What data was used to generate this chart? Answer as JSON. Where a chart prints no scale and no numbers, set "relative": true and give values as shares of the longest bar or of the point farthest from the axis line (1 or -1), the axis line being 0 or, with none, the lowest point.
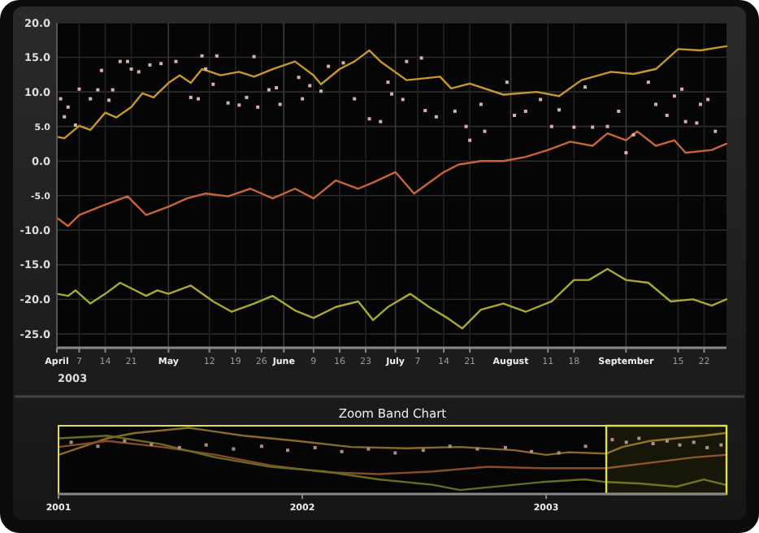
{
  "chart_data": [
    {
      "type": "line",
      "xlim": [
        "2003-04-01",
        "2003-09-28"
      ],
      "ylim": [
        -27,
        20
      ],
      "grid": true,
      "annotations": [
        "2003"
      ],
      "xticks": [
        {
          "value": "2003-04-01",
          "label": "April"
        },
        {
          "value": "2003-04-07",
          "label": "7"
        },
        {
          "value": "2003-04-14",
          "label": "14"
        },
        {
          "value": "2003-04-21",
          "label": "21"
        },
        {
          "value": "2003-05-01",
          "label": "May"
        },
        {
          "value": "2003-05-12",
          "label": "12"
        },
        {
          "value": "2003-05-19",
          "label": "19"
        },
        {
          "value": "2003-05-26",
          "label": "26"
        },
        {
          "value": "2003-06-01",
          "label": "June"
        },
        {
          "value": "2003-06-09",
          "label": "9"
        },
        {
          "value": "2003-06-16",
          "label": "16"
        },
        {
          "value": "2003-06-23",
          "label": "23"
        },
        {
          "value": "2003-07-01",
          "label": "July"
        },
        {
          "value": "2003-07-07",
          "label": "7"
        },
        {
          "value": "2003-07-14",
          "label": "14"
        },
        {
          "value": "2003-07-21",
          "label": "21"
        },
        {
          "value": "2003-08-01",
          "label": "August"
        },
        {
          "value": "2003-08-11",
          "label": "11"
        },
        {
          "value": "2003-08-18",
          "label": "18"
        },
        {
          "value": "2003-09-01",
          "label": "September"
        },
        {
          "value": "2003-09-15",
          "label": "15"
        },
        {
          "value": "2003-09-22",
          "label": "22"
        }
      ],
      "yticks": [
        {
          "value": 20,
          "label": "20.0"
        },
        {
          "value": 15,
          "label": "15.0"
        },
        {
          "value": 10,
          "label": "10.0"
        },
        {
          "value": 5,
          "label": "5.0"
        },
        {
          "value": 0,
          "label": "0.0"
        },
        {
          "value": -5,
          "label": "-5.0"
        },
        {
          "value": -10,
          "label": "-10.0"
        },
        {
          "value": -15,
          "label": "-15.0"
        },
        {
          "value": -20,
          "label": "-20.0"
        },
        {
          "value": -25,
          "label": "-25.0"
        }
      ],
      "series": [
        {
          "color": "#c8962a",
          "x": [
            "2003-04-01",
            "2003-04-03",
            "2003-04-07",
            "2003-04-10",
            "2003-04-14",
            "2003-04-17",
            "2003-04-21",
            "2003-04-24",
            "2003-04-27",
            "2003-05-01",
            "2003-05-04",
            "2003-05-07",
            "2003-05-10",
            "2003-05-15",
            "2003-05-20",
            "2003-05-24",
            "2003-05-29",
            "2003-06-04",
            "2003-06-09",
            "2003-06-11",
            "2003-06-16",
            "2003-06-20",
            "2003-06-24",
            "2003-06-27",
            "2003-07-04",
            "2003-07-13",
            "2003-07-16",
            "2003-07-21",
            "2003-07-30",
            "2003-08-08",
            "2003-08-14",
            "2003-08-20",
            "2003-08-28",
            "2003-09-03",
            "2003-09-09",
            "2003-09-15",
            "2003-09-21",
            "2003-09-28"
          ],
          "values": [
            3.5,
            3.3,
            5.1,
            4.5,
            7,
            6.3,
            7.8,
            9.8,
            9.2,
            11.3,
            12.4,
            11.3,
            13.3,
            12.4,
            12.9,
            12.2,
            13.3,
            14.4,
            12.4,
            11.1,
            13.3,
            14.4,
            16,
            14.4,
            11.7,
            12.2,
            10.5,
            11.2,
            9.6,
            10,
            9.4,
            11.7,
            12.9,
            12.6,
            13.3,
            16.2,
            16,
            16.6
          ]
        },
        {
          "color": "#c8643a",
          "x": [
            "2003-04-01",
            "2003-04-04",
            "2003-04-07",
            "2003-04-14",
            "2003-04-20",
            "2003-04-25",
            "2003-05-01",
            "2003-05-06",
            "2003-05-11",
            "2003-05-17",
            "2003-05-23",
            "2003-05-29",
            "2003-06-04",
            "2003-06-09",
            "2003-06-15",
            "2003-06-21",
            "2003-06-25",
            "2003-07-01",
            "2003-07-06",
            "2003-07-14",
            "2003-07-18",
            "2003-07-24",
            "2003-07-30",
            "2003-08-05",
            "2003-08-11",
            "2003-08-17",
            "2003-08-23",
            "2003-08-27",
            "2003-09-01",
            "2003-09-04",
            "2003-09-09",
            "2003-09-14",
            "2003-09-17",
            "2003-09-24",
            "2003-09-28"
          ],
          "values": [
            -8.2,
            -9.4,
            -7.8,
            -6.3,
            -5.1,
            -7.8,
            -6.6,
            -5.4,
            -4.7,
            -5.1,
            -4,
            -5.4,
            -4,
            -5.4,
            -2.8,
            -4,
            -3.1,
            -1.6,
            -4.7,
            -1.6,
            -0.5,
            0,
            0,
            0.6,
            1.6,
            2.8,
            2.2,
            4,
            3,
            4.3,
            2.2,
            3,
            1.2,
            1.6,
            2.5
          ]
        },
        {
          "color": "#a8a832",
          "x": [
            "2003-04-01",
            "2003-04-04",
            "2003-04-06",
            "2003-04-10",
            "2003-04-14",
            "2003-04-18",
            "2003-04-25",
            "2003-04-28",
            "2003-05-01",
            "2003-05-07",
            "2003-05-13",
            "2003-05-18",
            "2003-05-24",
            "2003-05-29",
            "2003-06-04",
            "2003-06-09",
            "2003-06-15",
            "2003-06-21",
            "2003-06-25",
            "2003-06-29",
            "2003-07-05",
            "2003-07-10",
            "2003-07-15",
            "2003-07-19",
            "2003-07-24",
            "2003-07-30",
            "2003-08-05",
            "2003-08-12",
            "2003-08-18",
            "2003-08-22",
            "2003-08-27",
            "2003-09-01",
            "2003-09-07",
            "2003-09-13",
            "2003-09-19",
            "2003-09-24",
            "2003-09-28"
          ],
          "values": [
            -19.2,
            -19.5,
            -18.7,
            -20.6,
            -19.2,
            -17.6,
            -19.5,
            -18.7,
            -19.2,
            -18,
            -20.3,
            -21.8,
            -20.6,
            -19.5,
            -21.6,
            -22.7,
            -21.1,
            -20.3,
            -23,
            -21.1,
            -19.2,
            -21.1,
            -22.7,
            -24.2,
            -21.5,
            -20.6,
            -21.8,
            -20.3,
            -17.2,
            -17.2,
            -15.6,
            -17.2,
            -17.6,
            -20.3,
            -20,
            -20.9,
            -20
          ]
        },
        {
          "type": "scatter",
          "color": "#d8b0a8",
          "x": [
            "2003-04-02",
            "2003-04-03",
            "2003-04-04",
            "2003-04-06",
            "2003-04-07",
            "2003-04-10",
            "2003-04-12",
            "2003-04-13",
            "2003-04-15",
            "2003-04-16",
            "2003-04-18",
            "2003-04-20",
            "2003-04-21",
            "2003-04-23",
            "2003-04-26",
            "2003-04-29",
            "2003-05-03",
            "2003-05-07",
            "2003-05-09",
            "2003-05-10",
            "2003-05-11",
            "2003-05-13",
            "2003-05-14",
            "2003-05-17",
            "2003-05-20",
            "2003-05-22",
            "2003-05-24",
            "2003-05-25",
            "2003-05-28",
            "2003-05-30",
            "2003-05-31",
            "2003-06-05",
            "2003-06-06",
            "2003-06-08",
            "2003-06-11",
            "2003-06-13",
            "2003-06-17",
            "2003-06-20",
            "2003-06-24",
            "2003-06-27",
            "2003-06-29",
            "2003-06-30",
            "2003-07-03",
            "2003-07-04",
            "2003-07-08",
            "2003-07-09",
            "2003-07-12",
            "2003-07-17",
            "2003-07-20",
            "2003-07-21",
            "2003-07-24",
            "2003-07-25",
            "2003-07-31",
            "2003-08-02",
            "2003-08-05",
            "2003-08-09",
            "2003-08-12",
            "2003-08-14",
            "2003-08-18",
            "2003-08-21",
            "2003-08-23",
            "2003-08-27",
            "2003-08-30",
            "2003-09-01",
            "2003-09-03",
            "2003-09-07",
            "2003-09-09",
            "2003-09-12",
            "2003-09-14",
            "2003-09-16",
            "2003-09-17",
            "2003-09-20",
            "2003-09-21",
            "2003-09-23",
            "2003-09-25"
          ],
          "values": [
            9.0,
            6.4,
            7.8,
            5.2,
            10.4,
            9.0,
            10.3,
            13.1,
            8.8,
            10.3,
            14.4,
            14.4,
            13.3,
            12.9,
            13.9,
            14.1,
            14.4,
            9.2,
            9.0,
            15.2,
            13.3,
            11.1,
            15.2,
            8.4,
            8.1,
            9.2,
            15.1,
            7.8,
            10.3,
            10.6,
            8.2,
            12.1,
            9.0,
            10.9,
            10.1,
            13.7,
            14.2,
            9.0,
            6.1,
            5.7,
            11.4,
            9.7,
            8.9,
            14.4,
            14.9,
            7.3,
            6.4,
            7.2,
            5.0,
            3.0,
            8.2,
            4.3,
            11.4,
            6.6,
            7.2,
            8.9,
            5.0,
            7.4,
            4.9,
            10.7,
            4.9,
            5.0,
            7.2,
            1.2,
            3.8,
            11.4,
            8.2,
            6.6,
            9.4,
            10.4,
            5.7,
            5.5,
            8.2,
            8.9,
            4.3
          ]
        }
      ]
    },
    {
      "type": "line",
      "title": "Zoom Band Chart",
      "relative": true,
      "xlim": [
        "2001-01-01",
        "2003-09-28"
      ],
      "xticks": [
        "2001",
        "2002",
        "2003"
      ],
      "bands": [
        {
          "axis": "x",
          "from": "2003-04-01",
          "to": "2003-09-28",
          "color": "#e0e040"
        }
      ],
      "series": [
        {
          "color": "#8a6a28",
          "x": [
            "2001-01-01",
            "2001-03-15",
            "2001-04-25",
            "2001-07-15",
            "2001-10-05",
            "2001-12-25",
            "2002-03-15",
            "2002-06-05",
            "2002-08-25",
            "2002-11-15",
            "2003-01-01",
            "2003-02-04",
            "2003-04-01",
            "2003-04-25",
            "2003-06-05",
            "2003-07-15",
            "2003-08-25",
            "2003-09-26"
          ],
          "values": [
            0.59,
            0.84,
            0.92,
            1.0,
            0.88,
            0.8,
            0.71,
            0.69,
            0.71,
            0.66,
            0.59,
            0.63,
            0.61,
            0.71,
            0.8,
            0.84,
            0.88,
            0.92
          ]
        },
        {
          "color": "#8a4a2a",
          "x": [
            "2001-01-01",
            "2001-03-15",
            "2001-06-05",
            "2001-08-25",
            "2001-11-15",
            "2002-02-04",
            "2002-04-25",
            "2002-07-15",
            "2002-10-05",
            "2002-12-25",
            "2003-04-01",
            "2003-06-05",
            "2003-08-08",
            "2003-09-26"
          ],
          "values": [
            0.71,
            0.8,
            0.71,
            0.59,
            0.43,
            0.33,
            0.3,
            0.34,
            0.41,
            0.39,
            0.39,
            0.47,
            0.55,
            0.59
          ]
        },
        {
          "color": "#6a6a22",
          "x": [
            "2001-01-01",
            "2001-03-15",
            "2001-06-05",
            "2001-08-25",
            "2001-11-15",
            "2002-02-04",
            "2002-04-25",
            "2002-07-15",
            "2002-08-25",
            "2002-10-05",
            "2002-12-25",
            "2003-02-28",
            "2003-04-01",
            "2003-05-20",
            "2003-07-15",
            "2003-08-25",
            "2003-09-26"
          ],
          "values": [
            0.84,
            0.88,
            0.75,
            0.55,
            0.41,
            0.34,
            0.22,
            0.14,
            0.06,
            0.1,
            0.18,
            0.22,
            0.18,
            0.16,
            0.11,
            0.22,
            0.14
          ]
        },
        {
          "type": "scatter",
          "color": "#b08a84",
          "x": [
            "2001-01-20",
            "2001-03-01",
            "2001-04-10",
            "2001-05-20",
            "2001-07-01",
            "2001-08-10",
            "2001-09-20",
            "2001-11-01",
            "2001-12-10",
            "2002-01-20",
            "2002-03-01",
            "2002-04-10",
            "2002-05-20",
            "2002-07-01",
            "2002-08-10",
            "2002-09-20",
            "2002-11-01",
            "2002-12-10",
            "2003-01-20",
            "2003-03-01",
            "2003-04-10",
            "2003-05-01",
            "2003-05-20",
            "2003-06-10",
            "2003-07-01",
            "2003-07-20",
            "2003-08-10",
            "2003-08-30",
            "2003-09-20"
          ],
          "values": [
            0.78,
            0.72,
            0.8,
            0.75,
            0.7,
            0.74,
            0.68,
            0.72,
            0.66,
            0.7,
            0.64,
            0.68,
            0.62,
            0.66,
            0.72,
            0.68,
            0.7,
            0.64,
            0.62,
            0.72,
            0.82,
            0.78,
            0.84,
            0.76,
            0.8,
            0.74,
            0.78,
            0.7,
            0.74
          ]
        }
      ]
    }
  ]
}
